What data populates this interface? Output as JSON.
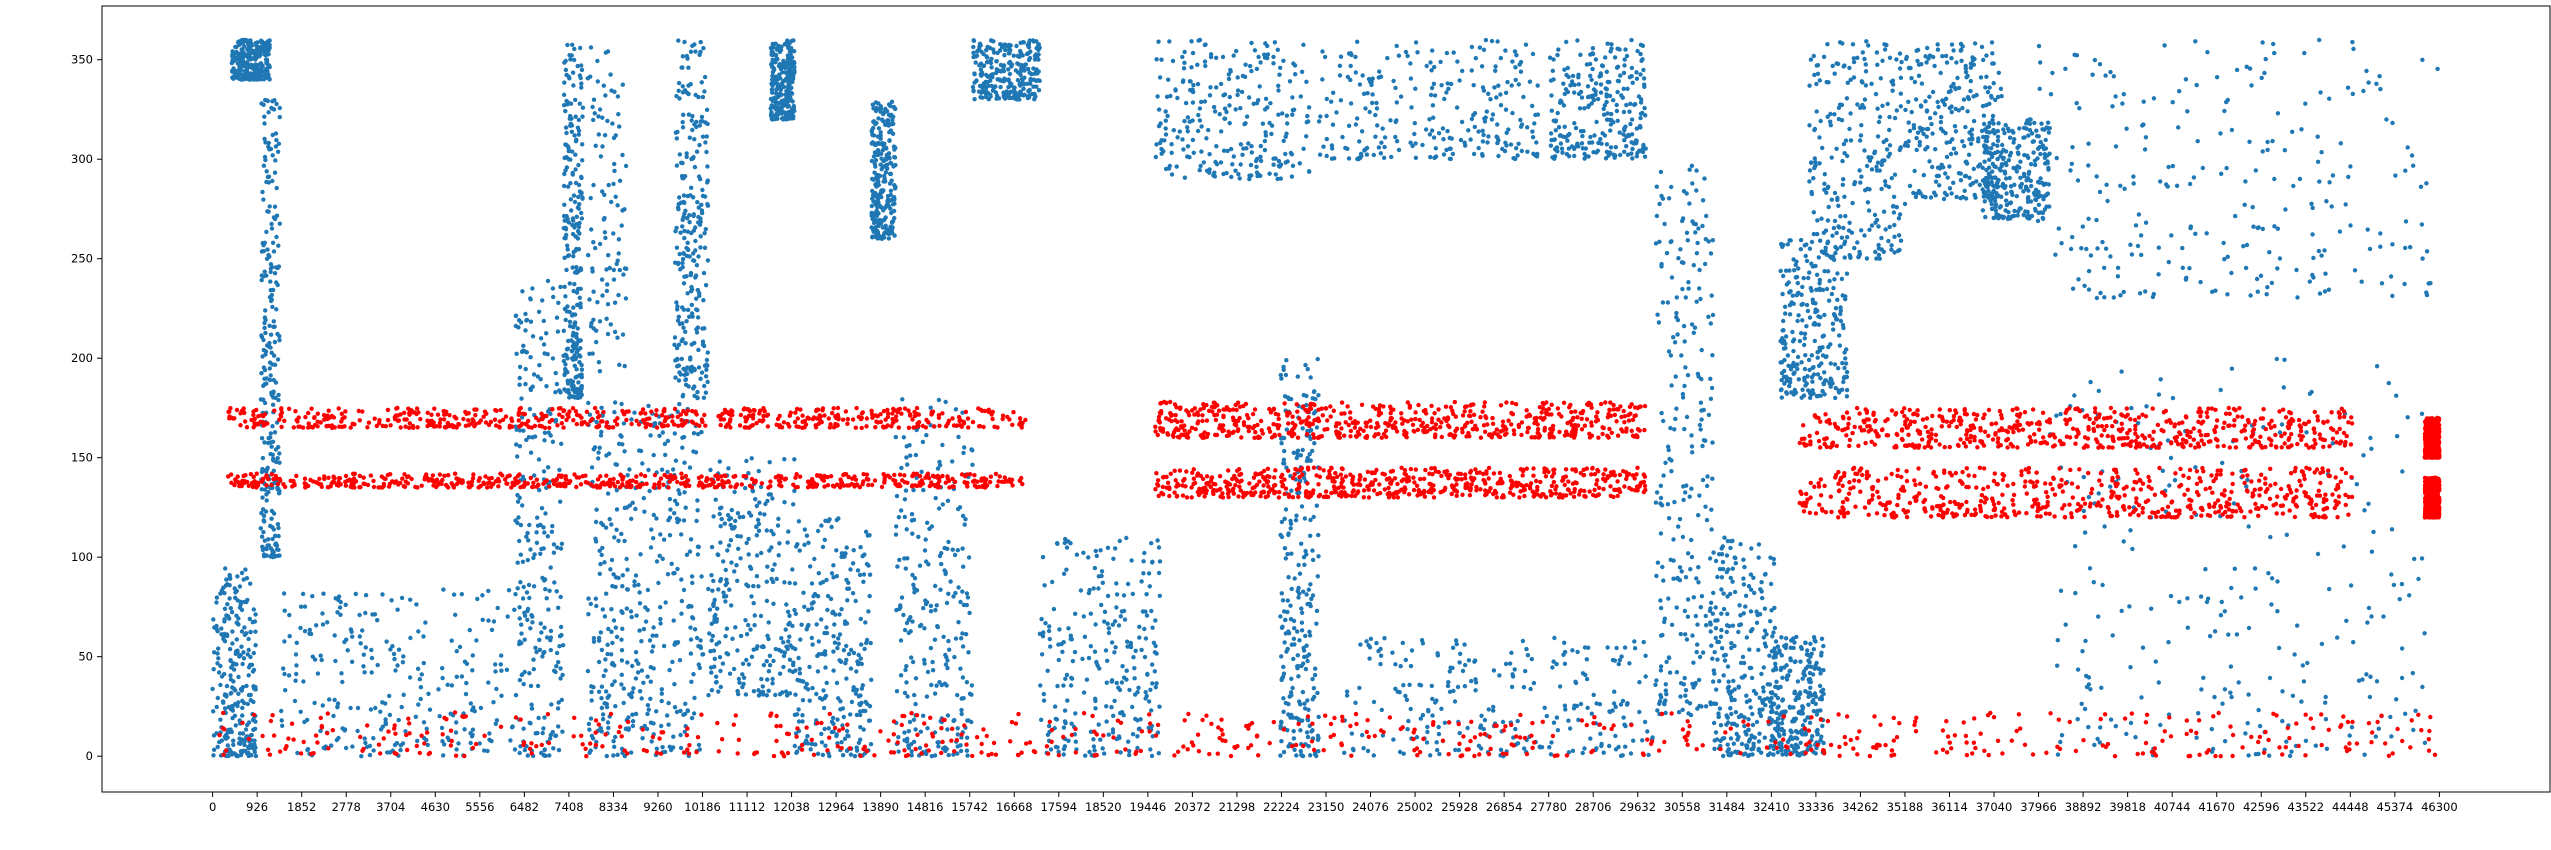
{
  "chart_data": {
    "type": "scatter",
    "title": "",
    "xlabel": "",
    "ylabel": "",
    "xlim": [
      -2300,
      48600
    ],
    "ylim": [
      -18,
      377
    ],
    "x_ticks": [
      0,
      926,
      1852,
      2778,
      3704,
      4630,
      5556,
      6482,
      7408,
      8334,
      9260,
      10186,
      11112,
      12038,
      12964,
      13890,
      14816,
      15742,
      16668,
      17594,
      18520,
      19446,
      20372,
      21298,
      22224,
      23150,
      24076,
      25002,
      25928,
      26854,
      27780,
      28706,
      29632,
      30558,
      31484,
      32410,
      33336,
      34262,
      35188,
      36114,
      37040,
      37966,
      38892,
      39818,
      40744,
      41670,
      42596,
      43522,
      44448,
      45374,
      46300
    ],
    "y_ticks": [
      0,
      50,
      100,
      150,
      200,
      250,
      300,
      350
    ],
    "grid": false,
    "legend": "none",
    "series": [
      {
        "color": "#1f77b4",
        "marker_size": 2.2,
        "description_points": "dense scatter of roughly 46300 samples; values read from the figure",
        "regions": [
          {
            "x": [
              0,
              900
            ],
            "band": [
              0,
              95
            ]
          },
          {
            "x": [
              400,
              1200
            ],
            "band": [
              340,
              360
            ]
          },
          {
            "x": [
              1000,
              1400
            ],
            "band": [
              100,
              330
            ]
          },
          {
            "x": [
              1400,
              6300
            ],
            "band": [
              0,
              85
            ]
          },
          {
            "x": [
              6300,
              7300
            ],
            "band": [
              0,
              240
            ]
          },
          {
            "x": [
              7300,
              7700
            ],
            "band": [
              180,
              360
            ]
          },
          {
            "x": [
              7800,
              8600
            ],
            "band": [
              0,
              360
            ]
          },
          {
            "x": [
              8600,
              10200
            ],
            "band": [
              0,
              180
            ]
          },
          {
            "x": [
              9600,
              10300
            ],
            "band": [
              180,
              360
            ]
          },
          {
            "x": [
              10300,
              12100
            ],
            "band": [
              30,
              150
            ]
          },
          {
            "x": [
              11600,
              12100
            ],
            "band": [
              320,
              360
            ]
          },
          {
            "x": [
              12100,
              13700
            ],
            "band": [
              0,
              120
            ]
          },
          {
            "x": [
              13700,
              14200
            ],
            "band": [
              260,
              330
            ]
          },
          {
            "x": [
              14200,
              15800
            ],
            "band": [
              0,
              180
            ]
          },
          {
            "x": [
              15800,
              17200
            ],
            "band": [
              330,
              360
            ]
          },
          {
            "x": [
              17200,
              19700
            ],
            "band": [
              0,
              110
            ]
          },
          {
            "x": [
              19600,
              22800
            ],
            "band": [
              290,
              360
            ]
          },
          {
            "x": [
              22200,
              23000
            ],
            "band": [
              0,
              200
            ]
          },
          {
            "x": [
              23000,
              27600
            ],
            "band": [
              300,
              360
            ]
          },
          {
            "x": [
              23500,
              30000
            ],
            "band": [
              0,
              60
            ]
          },
          {
            "x": [
              27800,
              29800
            ],
            "band": [
              300,
              360
            ]
          },
          {
            "x": [
              30000,
              31200
            ],
            "band": [
              20,
              300
            ]
          },
          {
            "x": [
              31200,
              32500
            ],
            "band": [
              0,
              110
            ]
          },
          {
            "x": [
              32400,
              33500
            ],
            "band": [
              0,
              60
            ]
          },
          {
            "x": [
              32600,
              34000
            ],
            "band": [
              180,
              260
            ]
          },
          {
            "x": [
              33200,
              35200
            ],
            "band": [
              250,
              360
            ]
          },
          {
            "x": [
              35200,
              37200
            ],
            "band": [
              280,
              360
            ]
          },
          {
            "x": [
              36800,
              38200
            ],
            "band": [
              270,
              320
            ]
          },
          {
            "x": [
              37900,
              46300
            ],
            "band": [
              230,
              360
            ]
          },
          {
            "x": [
              38200,
              46000
            ],
            "band": [
              0,
              200
            ]
          }
        ]
      },
      {
        "color": "#ff0000",
        "marker_size": 2.2,
        "regions": [
          {
            "x": [
              0,
              46300
            ],
            "band": [
              0,
              22
            ]
          },
          {
            "x": [
              300,
              16900
            ],
            "bands": [
              [
                135,
                142
              ],
              [
                165,
                175
              ]
            ]
          },
          {
            "x": [
              19600,
              29800
            ],
            "bands": [
              [
                130,
                145
              ],
              [
                160,
                178
              ]
            ]
          },
          {
            "x": [
              33000,
              44500
            ],
            "bands": [
              [
                120,
                145
              ],
              [
                155,
                175
              ]
            ]
          },
          {
            "x": [
              46000,
              46300
            ],
            "bands": [
              [
                120,
                140
              ],
              [
                150,
                170
              ]
            ]
          }
        ]
      }
    ]
  }
}
